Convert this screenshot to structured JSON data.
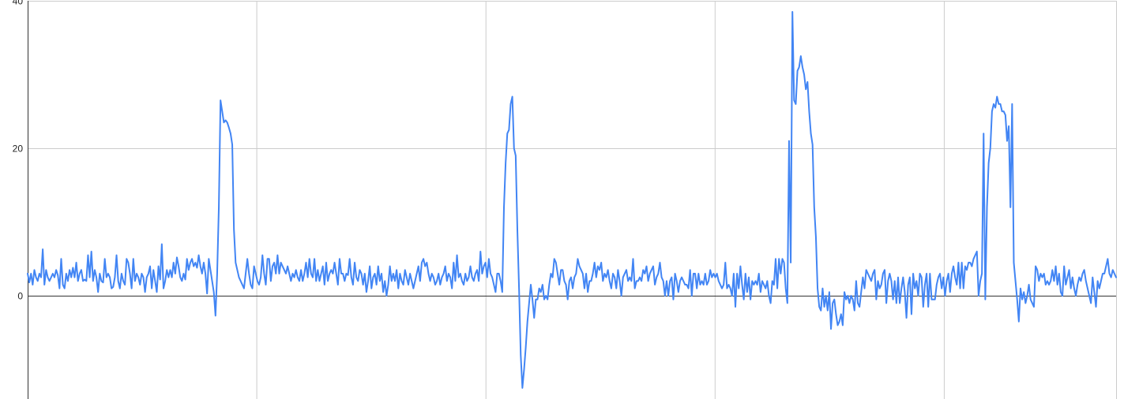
{
  "chart_data": {
    "type": "line",
    "title": "",
    "xlabel": "",
    "ylabel": "",
    "ylim": [
      -14,
      40
    ],
    "y_ticks": [
      0,
      20,
      40
    ],
    "y_tick_labels": [
      "0",
      "20",
      "40"
    ],
    "grid": true,
    "legend": "none",
    "colors": {
      "series": "#4285f4",
      "grid": "#cccccc",
      "zero_line": "#333333",
      "axis": "#333333"
    },
    "series": [
      {
        "name": "",
        "values": [
          3,
          1.8,
          3,
          1.5,
          3.5,
          2.5,
          2,
          3,
          2.5,
          6.3,
          1.5,
          3.5,
          2.5,
          2,
          2.5,
          3,
          2.5,
          3.5,
          2.8,
          1,
          5,
          1.5,
          1,
          3,
          2,
          3.5,
          2.5,
          3.8,
          2.5,
          4.5,
          2,
          3,
          3.5,
          2,
          2.2,
          2,
          5.5,
          2.5,
          6,
          2,
          3.5,
          2.5,
          0.5,
          3,
          2,
          1.8,
          5,
          2.5,
          3,
          2.5,
          1,
          1.2,
          2.5,
          5.5,
          2,
          1,
          3,
          2,
          1.5,
          5,
          4.5,
          3,
          1,
          5,
          2,
          3,
          2.5,
          1.5,
          3,
          2.5,
          0.5,
          2.5,
          3,
          4,
          1,
          3.5,
          2,
          0.5,
          4,
          2.2,
          7,
          1,
          2,
          3.5,
          2.5,
          3.5,
          2.5,
          4.5,
          3,
          5.2,
          4,
          2.5,
          2,
          3,
          2.2,
          5,
          3.5,
          4.5,
          5,
          4,
          4.5,
          3.8,
          5.5,
          4,
          3,
          4.5,
          3,
          0.3,
          5,
          3.5,
          2,
          0.5,
          -2.7,
          3,
          12,
          26.5,
          25,
          23.5,
          23.8,
          23.5,
          22.8,
          22,
          20.5,
          9,
          4.5,
          3.5,
          2.5,
          2,
          1.5,
          1,
          3,
          5,
          3,
          1.5,
          1,
          4,
          3,
          2,
          1.5,
          2.5,
          5.5,
          3,
          1.5,
          5,
          5,
          2,
          4,
          4.5,
          3,
          5.5,
          3,
          4.5,
          4,
          3.5,
          3,
          4,
          3,
          2,
          3,
          2.5,
          3.5,
          2.5,
          2,
          3.5,
          2,
          3,
          4.5,
          2.5,
          5,
          3,
          2.5,
          5,
          2,
          3.5,
          2,
          3,
          4,
          1.5,
          4.5,
          2,
          3,
          3.5,
          3,
          4.5,
          3,
          1.5,
          5,
          3,
          3,
          2,
          3,
          2.8,
          5,
          2.5,
          1.5,
          4.5,
          2.5,
          2,
          3.5,
          3,
          1.5,
          3,
          0.5,
          2,
          4,
          1,
          2.5,
          3,
          1.5,
          4,
          2,
          3,
          0.5,
          2,
          0,
          1.5,
          4,
          2,
          3,
          2,
          3.5,
          1,
          3,
          2,
          1.5,
          3.5,
          2.5,
          1.5,
          3,
          2,
          1,
          2,
          3,
          4,
          2,
          4.5,
          5,
          4,
          4.5,
          3,
          2,
          3,
          2.5,
          1.5,
          2,
          3,
          1.5,
          2.5,
          3,
          4,
          2,
          3,
          2.5,
          1,
          4.5,
          2,
          5.5,
          2.5,
          3,
          2,
          1.5,
          3,
          2,
          2.5,
          4,
          2.5,
          2,
          3,
          3.5,
          2,
          6,
          3,
          4,
          4.5,
          2.5,
          5,
          3,
          2.5,
          1.5,
          0.5,
          3,
          3,
          2,
          0.5,
          12,
          18,
          22,
          22.5,
          26,
          27,
          20,
          19,
          9,
          1,
          -8,
          -12.5,
          -10,
          -7,
          -3.5,
          -1,
          1.5,
          -0.5,
          -3,
          -0.5,
          -0.5,
          1,
          0.5,
          1.5,
          -0.5,
          0,
          -0.5,
          1.5,
          3,
          2.5,
          5,
          4.5,
          3,
          1.5,
          3.5,
          3.5,
          2,
          1.5,
          -0.5,
          2,
          2.5,
          1,
          2.5,
          3,
          5,
          4,
          3.5,
          3,
          1,
          3,
          0.5,
          2,
          2,
          3,
          4.5,
          2.5,
          4,
          3.5,
          4.5,
          2,
          3,
          2.5,
          3.5,
          2,
          1,
          3,
          2.5,
          1,
          3.5,
          2,
          0,
          2.5,
          3,
          3.5,
          2,
          2.5,
          2,
          5,
          1,
          2,
          2,
          2.5,
          2,
          3.5,
          3,
          4,
          2,
          3,
          3.5,
          4,
          1.5,
          2.5,
          3,
          4.5,
          2.5,
          2,
          0,
          2,
          0,
          2,
          2.5,
          -0.5,
          3,
          2,
          0.5,
          2,
          2.5,
          2,
          1.5,
          1.5,
          1,
          3.5,
          0,
          3,
          3,
          1,
          3,
          1.5,
          2,
          1.5,
          3,
          1.5,
          2,
          3.5,
          2.5,
          3,
          2.5,
          3,
          2,
          1.5,
          1,
          1.5,
          4.5,
          1,
          1.5,
          1,
          0,
          3,
          -1.5,
          3,
          1,
          4,
          1.5,
          -0.5,
          3,
          0.5,
          2.5,
          -0.5,
          2,
          1.5,
          2,
          1.5,
          3,
          0.5,
          2,
          1.5,
          1,
          2,
          0,
          -1,
          2,
          1.5,
          5,
          1,
          5,
          3,
          5,
          4.5,
          1,
          -1,
          21,
          4.5,
          38.5,
          26.5,
          26,
          30.5,
          31,
          32.5,
          31,
          30,
          28,
          29,
          25,
          22,
          20.5,
          12,
          8,
          1,
          -1.5,
          -2,
          1,
          -1.5,
          0,
          -2,
          0.5,
          -4.5,
          -1,
          -0.5,
          -2.5,
          -4,
          -3.5,
          -2.5,
          -4,
          0.5,
          -0.5,
          0,
          -1,
          0,
          -0.5,
          -2,
          2,
          -1,
          -1.5,
          0.5,
          2.5,
          1,
          3.5,
          3,
          2.5,
          2,
          3,
          3.5,
          -0.5,
          2,
          1,
          1.5,
          3,
          3.5,
          -1,
          2,
          3,
          2,
          -0.5,
          2,
          -1,
          2.5,
          -1,
          1,
          2.5,
          0.5,
          -3,
          1.5,
          2.5,
          -2.5,
          3,
          1,
          2,
          0,
          3,
          2.5,
          -1.5,
          1.5,
          3,
          -1.5,
          3,
          -0.5,
          -0.5,
          -0.5,
          1.5,
          2.5,
          3,
          1,
          2.5,
          0,
          2,
          3,
          0.5,
          3,
          4,
          2.5,
          1.5,
          4.5,
          1,
          4.5,
          1,
          4,
          3.5,
          4.5,
          4.5,
          4,
          5,
          5.5,
          6,
          0,
          2,
          3,
          22,
          -0.5,
          12,
          18,
          20,
          25,
          26,
          25.5,
          27,
          26,
          26,
          25,
          25,
          24.5,
          21,
          23,
          12,
          26,
          4.5,
          2,
          -0.5,
          -3.5,
          1,
          -0.5,
          0.5,
          -1,
          0,
          1.5,
          -0.5,
          -1,
          -1.5,
          4,
          3.5,
          2,
          3,
          2.5,
          3,
          1.5,
          2,
          1.5,
          2,
          3.5,
          2,
          4,
          1.5,
          3,
          0.5,
          0,
          4,
          1.5,
          2.5,
          3.5,
          1,
          2.5,
          1,
          0,
          1.5,
          2.5,
          2,
          3,
          3.5,
          2,
          1,
          0,
          -1,
          2.5,
          0.5,
          -1.5,
          2,
          1,
          2,
          3,
          3,
          4,
          5,
          3,
          2.5,
          3.5,
          3,
          2.5
        ]
      }
    ]
  }
}
